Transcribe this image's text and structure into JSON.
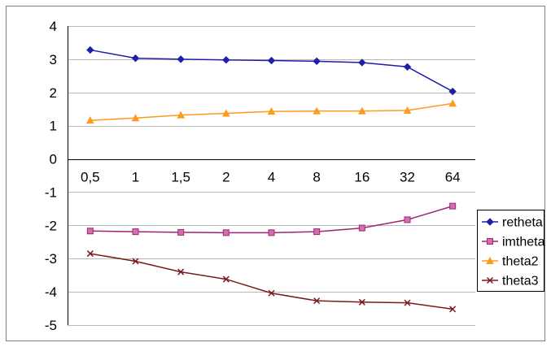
{
  "chart_data": {
    "type": "line",
    "categories": [
      "0,5",
      "1",
      "1,5",
      "2",
      "4",
      "8",
      "16",
      "32",
      "64"
    ],
    "ylim": [
      -5,
      4
    ],
    "ytick_labels": [
      "4",
      "3",
      "2",
      "1",
      "0",
      "-1",
      "-2",
      "-3",
      "-4",
      "-5"
    ],
    "ytick_values": [
      4,
      3,
      2,
      1,
      0,
      -1,
      -2,
      -3,
      -4,
      -5
    ],
    "grid": true,
    "legend_position": "right",
    "series": [
      {
        "name": "retheta",
        "color": "#1f1fa8",
        "marker": "diamond",
        "values": [
          3.28,
          3.03,
          3.0,
          2.98,
          2.96,
          2.94,
          2.9,
          2.77,
          2.03
        ]
      },
      {
        "name": "imtheta",
        "color": "#a0256e",
        "marker": "square",
        "values": [
          -2.17,
          -2.19,
          -2.21,
          -2.22,
          -2.22,
          -2.19,
          -2.08,
          -1.83,
          -1.42
        ]
      },
      {
        "name": "theta2",
        "color": "#ff9a1a",
        "marker": "triangle",
        "values": [
          1.16,
          1.23,
          1.32,
          1.37,
          1.43,
          1.44,
          1.44,
          1.46,
          1.67
        ]
      },
      {
        "name": "theta3",
        "color": "#7a1a1a",
        "marker": "x",
        "values": [
          -2.85,
          -3.08,
          -3.4,
          -3.62,
          -4.04,
          -4.27,
          -4.31,
          -4.33,
          -4.52
        ]
      }
    ]
  }
}
